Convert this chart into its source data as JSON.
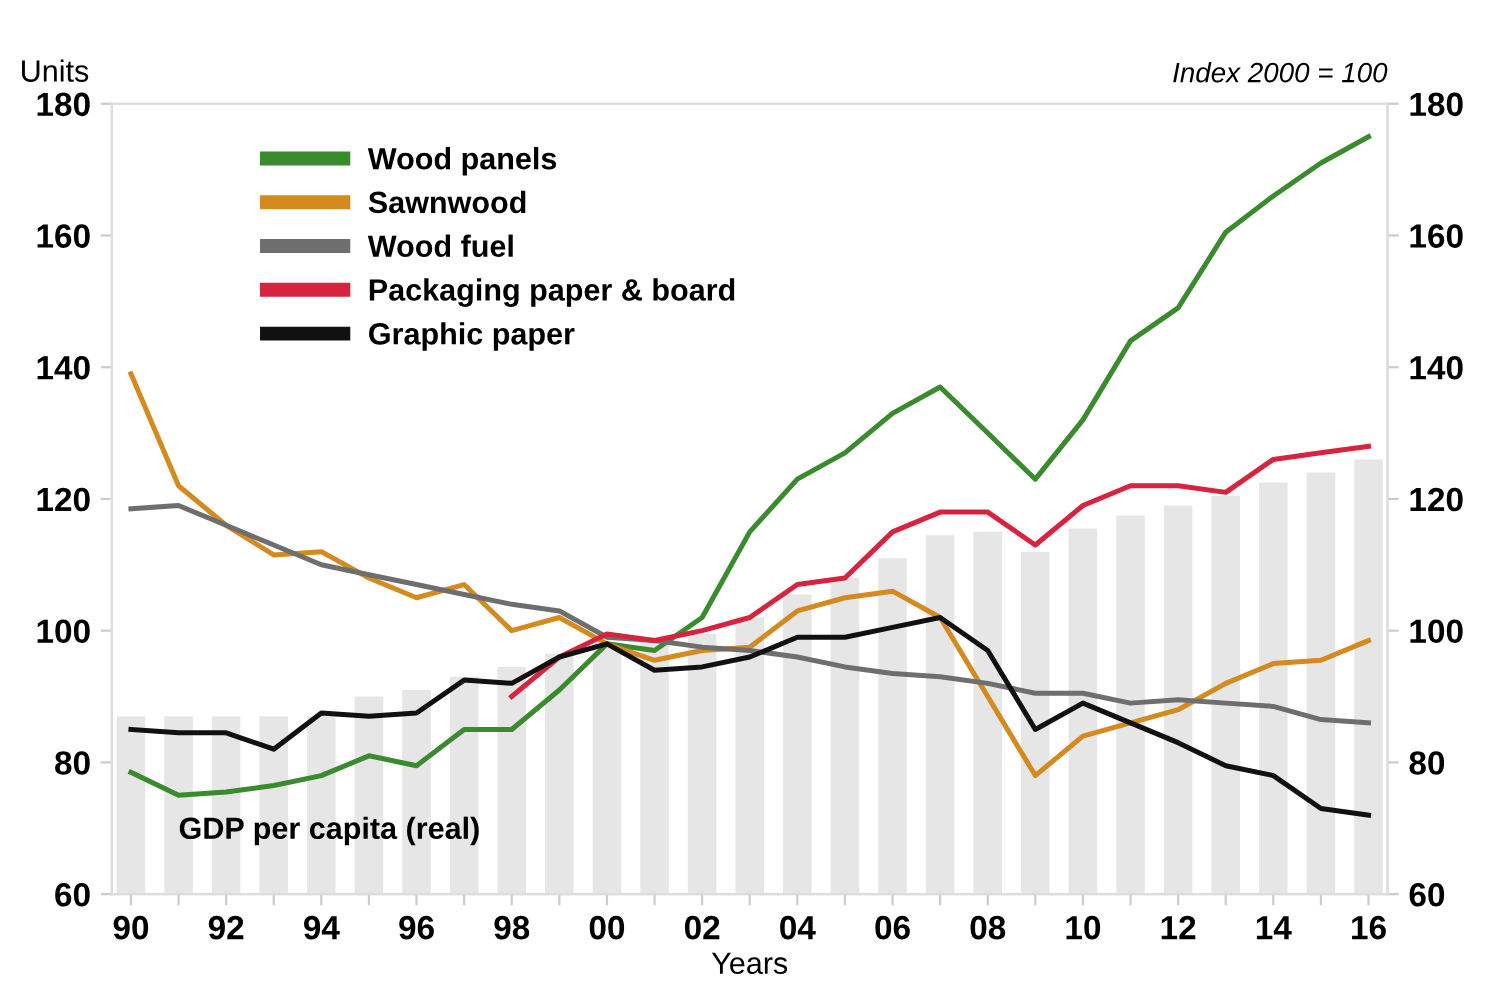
{
  "chart_data": {
    "type": "line",
    "ylabel": "Units",
    "xlabel": "Years",
    "annotations": [
      "Index 2000 = 100"
    ],
    "x": [
      1990,
      1991,
      1992,
      1993,
      1994,
      1995,
      1996,
      1997,
      1998,
      1999,
      2000,
      2001,
      2002,
      2003,
      2004,
      2005,
      2006,
      2007,
      2008,
      2009,
      2010,
      2011,
      2012,
      2013,
      2014,
      2015,
      2016
    ],
    "series": [
      {
        "name": "GDP per capita (real)",
        "type": "bar",
        "color": "#e6e6e6",
        "values": [
          87,
          87,
          87,
          87,
          87,
          90,
          91,
          93,
          94.5,
          96.5,
          98,
          98.5,
          99.5,
          102,
          105.5,
          108,
          111,
          114.5,
          115,
          112,
          115.5,
          117.5,
          119,
          120.5,
          122.5,
          124,
          126
        ]
      },
      {
        "name": "Wood panels",
        "color": "#3a8a2e",
        "values": [
          78.5,
          75,
          75.5,
          76.5,
          78,
          81,
          79.5,
          85,
          85,
          91,
          98,
          97,
          102,
          115,
          123,
          127,
          133,
          137,
          130,
          123,
          132,
          144,
          149,
          160.5,
          166,
          171,
          175
        ]
      },
      {
        "name": "Sawnwood",
        "color": "#d48a1e",
        "values": [
          139,
          122,
          116,
          111.5,
          112,
          108,
          105,
          107,
          100,
          102,
          98,
          95.5,
          97,
          97.5,
          103,
          105,
          106,
          102,
          90,
          78,
          84,
          86,
          88,
          92,
          95,
          95.5,
          98.5
        ]
      },
      {
        "name": "Wood fuel",
        "color": "#6e6e6e",
        "values": [
          118.5,
          119,
          116,
          113,
          110,
          108.5,
          107,
          105.5,
          104,
          103,
          99,
          98.5,
          97.5,
          97,
          96,
          94.5,
          93.5,
          93,
          92,
          90.5,
          90.5,
          89,
          89.5,
          89,
          88.5,
          86.5,
          86
        ]
      },
      {
        "name": "Packaging paper & board",
        "color": "#d8233f",
        "values": [
          null,
          null,
          null,
          null,
          null,
          null,
          null,
          null,
          90,
          96,
          99.5,
          98.5,
          100,
          102,
          107,
          108,
          115,
          118,
          118,
          113,
          119,
          122,
          122,
          121,
          126,
          127,
          128
        ]
      },
      {
        "name": "Graphic paper",
        "color": "#111111",
        "values": [
          85,
          84.5,
          84.5,
          82,
          87.5,
          87,
          87.5,
          92.5,
          92,
          96,
          98,
          94,
          94.5,
          96,
          99,
          99,
          100.5,
          102,
          97,
          85,
          89,
          86,
          83,
          79.5,
          78,
          73,
          72
        ]
      }
    ],
    "xlim": [
      1989.6,
      2016.4
    ],
    "xticks": [
      {
        "value": 1990,
        "label": "90"
      },
      {
        "value": 1991,
        "label": null
      },
      {
        "value": 1992,
        "label": "92"
      },
      {
        "value": 1993,
        "label": null
      },
      {
        "value": 1994,
        "label": "94"
      },
      {
        "value": 1995,
        "label": null
      },
      {
        "value": 1996,
        "label": "96"
      },
      {
        "value": 1997,
        "label": null
      },
      {
        "value": 1998,
        "label": "98"
      },
      {
        "value": 1999,
        "label": null
      },
      {
        "value": 2000,
        "label": "00"
      },
      {
        "value": 2001,
        "label": null
      },
      {
        "value": 2002,
        "label": "02"
      },
      {
        "value": 2003,
        "label": null
      },
      {
        "value": 2004,
        "label": "04"
      },
      {
        "value": 2005,
        "label": null
      },
      {
        "value": 2006,
        "label": "06"
      },
      {
        "value": 2007,
        "label": null
      },
      {
        "value": 2008,
        "label": "08"
      },
      {
        "value": 2009,
        "label": null
      },
      {
        "value": 2010,
        "label": "10"
      },
      {
        "value": 2011,
        "label": null
      },
      {
        "value": 2012,
        "label": "12"
      },
      {
        "value": 2013,
        "label": null
      },
      {
        "value": 2014,
        "label": "14"
      },
      {
        "value": 2015,
        "label": null
      },
      {
        "value": 2016,
        "label": "16"
      }
    ],
    "ylim": [
      60,
      180
    ],
    "yticks": [
      60,
      80,
      100,
      120,
      140,
      160,
      180
    ],
    "y2lim": [
      60,
      180
    ],
    "y2ticks": [
      60,
      80,
      100,
      120,
      140,
      160,
      180
    ],
    "grid": false,
    "legend": "top left",
    "marker": "none",
    "line_style": "solid"
  }
}
